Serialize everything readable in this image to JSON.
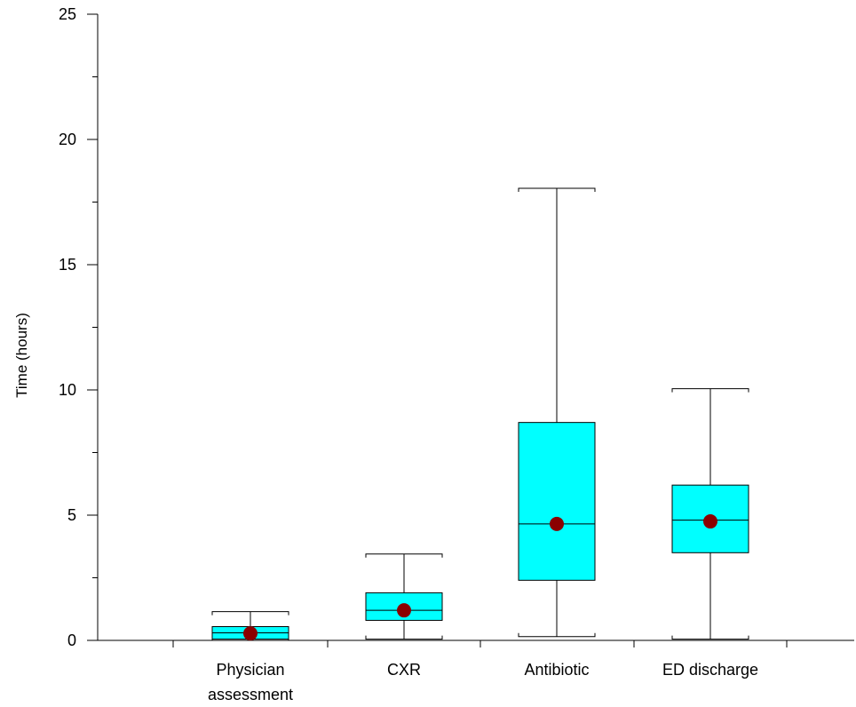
{
  "chart_data": {
    "type": "box",
    "ylabel": "Time (hours)",
    "ylim": [
      0,
      25
    ],
    "yticks": [
      0,
      5,
      10,
      15,
      20,
      25
    ],
    "grid": false,
    "colors": {
      "box": "#00ffff",
      "mean": "#8b0000",
      "line": "#000000"
    },
    "categories": [
      {
        "label_lines": [
          "Physician",
          "assessment"
        ],
        "whisker_low": 0.0,
        "q1": 0.05,
        "median": 0.3,
        "q3": 0.55,
        "whisker_high": 1.15,
        "mean": 0.28
      },
      {
        "label_lines": [
          "CXR"
        ],
        "whisker_low": 0.05,
        "q1": 0.8,
        "median": 1.2,
        "q3": 1.9,
        "whisker_high": 3.45,
        "mean": 1.2
      },
      {
        "label_lines": [
          "Antibiotic"
        ],
        "whisker_low": 0.15,
        "q1": 2.4,
        "median": 4.65,
        "q3": 8.7,
        "whisker_high": 18.05,
        "mean": 4.65
      },
      {
        "label_lines": [
          "ED discharge"
        ],
        "whisker_low": 0.05,
        "q1": 3.5,
        "median": 4.8,
        "q3": 6.2,
        "whisker_high": 10.05,
        "mean": 4.75
      }
    ]
  }
}
